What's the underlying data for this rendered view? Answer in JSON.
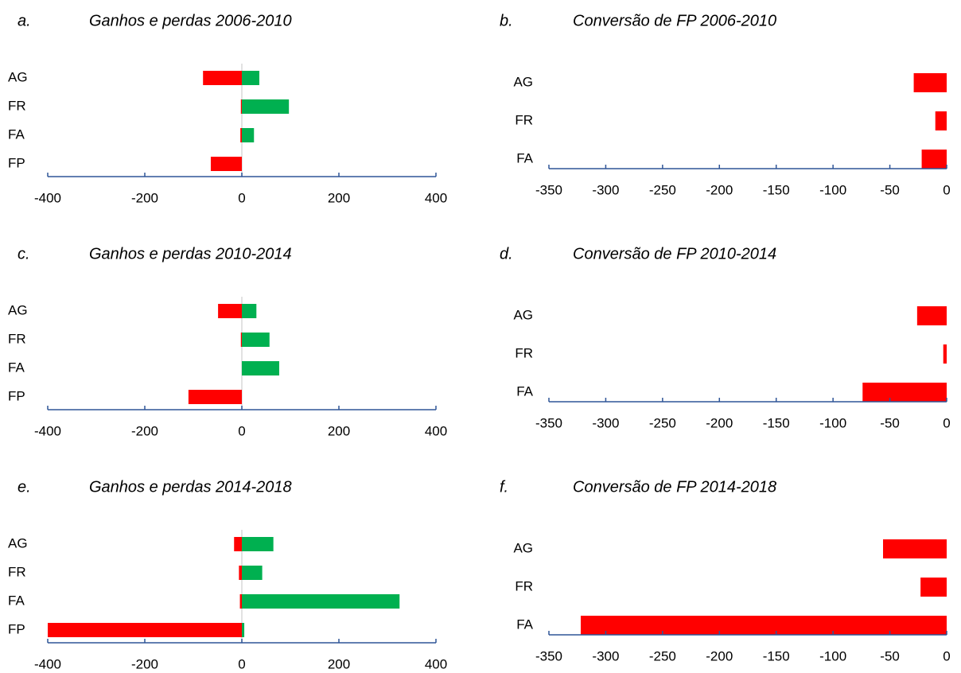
{
  "chart_data": [
    {
      "type": "bar",
      "orientation": "horizontal",
      "label": "a.",
      "title": "Ganhos e perdas 2006-2010",
      "categories": [
        "AG",
        "FR",
        "FA",
        "FP"
      ],
      "series": [
        {
          "color": "#ff0000",
          "values": [
            -80,
            -2,
            -3,
            -64
          ]
        },
        {
          "color": "#00b050",
          "values": [
            36,
            97,
            25,
            0
          ]
        }
      ],
      "xlim": [
        -400,
        400
      ],
      "xticks": [
        -400,
        -200,
        0,
        200,
        400
      ]
    },
    {
      "type": "bar",
      "orientation": "horizontal",
      "label": "b.",
      "title": "Conversão de FP 2006-2010",
      "categories": [
        "AG",
        "FR",
        "FA"
      ],
      "series": [
        {
          "color": "#ff0000",
          "values": [
            -29,
            -10,
            -22
          ]
        }
      ],
      "xlim": [
        -350,
        0
      ],
      "xticks": [
        -350,
        -300,
        -250,
        -200,
        -150,
        -100,
        -50,
        0
      ]
    },
    {
      "type": "bar",
      "orientation": "horizontal",
      "label": "c.",
      "title": "Ganhos e perdas 2010-2014",
      "categories": [
        "AG",
        "FR",
        "FA",
        "FP"
      ],
      "series": [
        {
          "color": "#ff0000",
          "values": [
            -49,
            -2,
            0,
            -110
          ]
        },
        {
          "color": "#00b050",
          "values": [
            30,
            57,
            77,
            0
          ]
        }
      ],
      "xlim": [
        -400,
        400
      ],
      "xticks": [
        -400,
        -200,
        0,
        200,
        400
      ]
    },
    {
      "type": "bar",
      "orientation": "horizontal",
      "label": "d.",
      "title": "Conversão de FP 2010-2014",
      "categories": [
        "AG",
        "FR",
        "FA"
      ],
      "series": [
        {
          "color": "#ff0000",
          "values": [
            -26,
            -3,
            -74
          ]
        }
      ],
      "xlim": [
        -350,
        0
      ],
      "xticks": [
        -350,
        -300,
        -250,
        -200,
        -150,
        -100,
        -50,
        0
      ]
    },
    {
      "type": "bar",
      "orientation": "horizontal",
      "label": "e.",
      "title": "Ganhos e perdas 2014-2018",
      "categories": [
        "AG",
        "FR",
        "FA",
        "FP"
      ],
      "series": [
        {
          "color": "#ff0000",
          "values": [
            -16,
            -6,
            -4,
            -400
          ]
        },
        {
          "color": "#00b050",
          "values": [
            65,
            42,
            325,
            5
          ]
        }
      ],
      "xlim": [
        -400,
        400
      ],
      "xticks": [
        -400,
        -200,
        0,
        200,
        400
      ]
    },
    {
      "type": "bar",
      "orientation": "horizontal",
      "label": "f.",
      "title": "Conversão de FP 2014-2018",
      "categories": [
        "AG",
        "FR",
        "FA"
      ],
      "series": [
        {
          "color": "#ff0000",
          "values": [
            -56,
            -23,
            -322
          ]
        }
      ],
      "xlim": [
        -350,
        0
      ],
      "xticks": [
        -350,
        -300,
        -250,
        -200,
        -150,
        -100,
        -50,
        0
      ]
    }
  ]
}
